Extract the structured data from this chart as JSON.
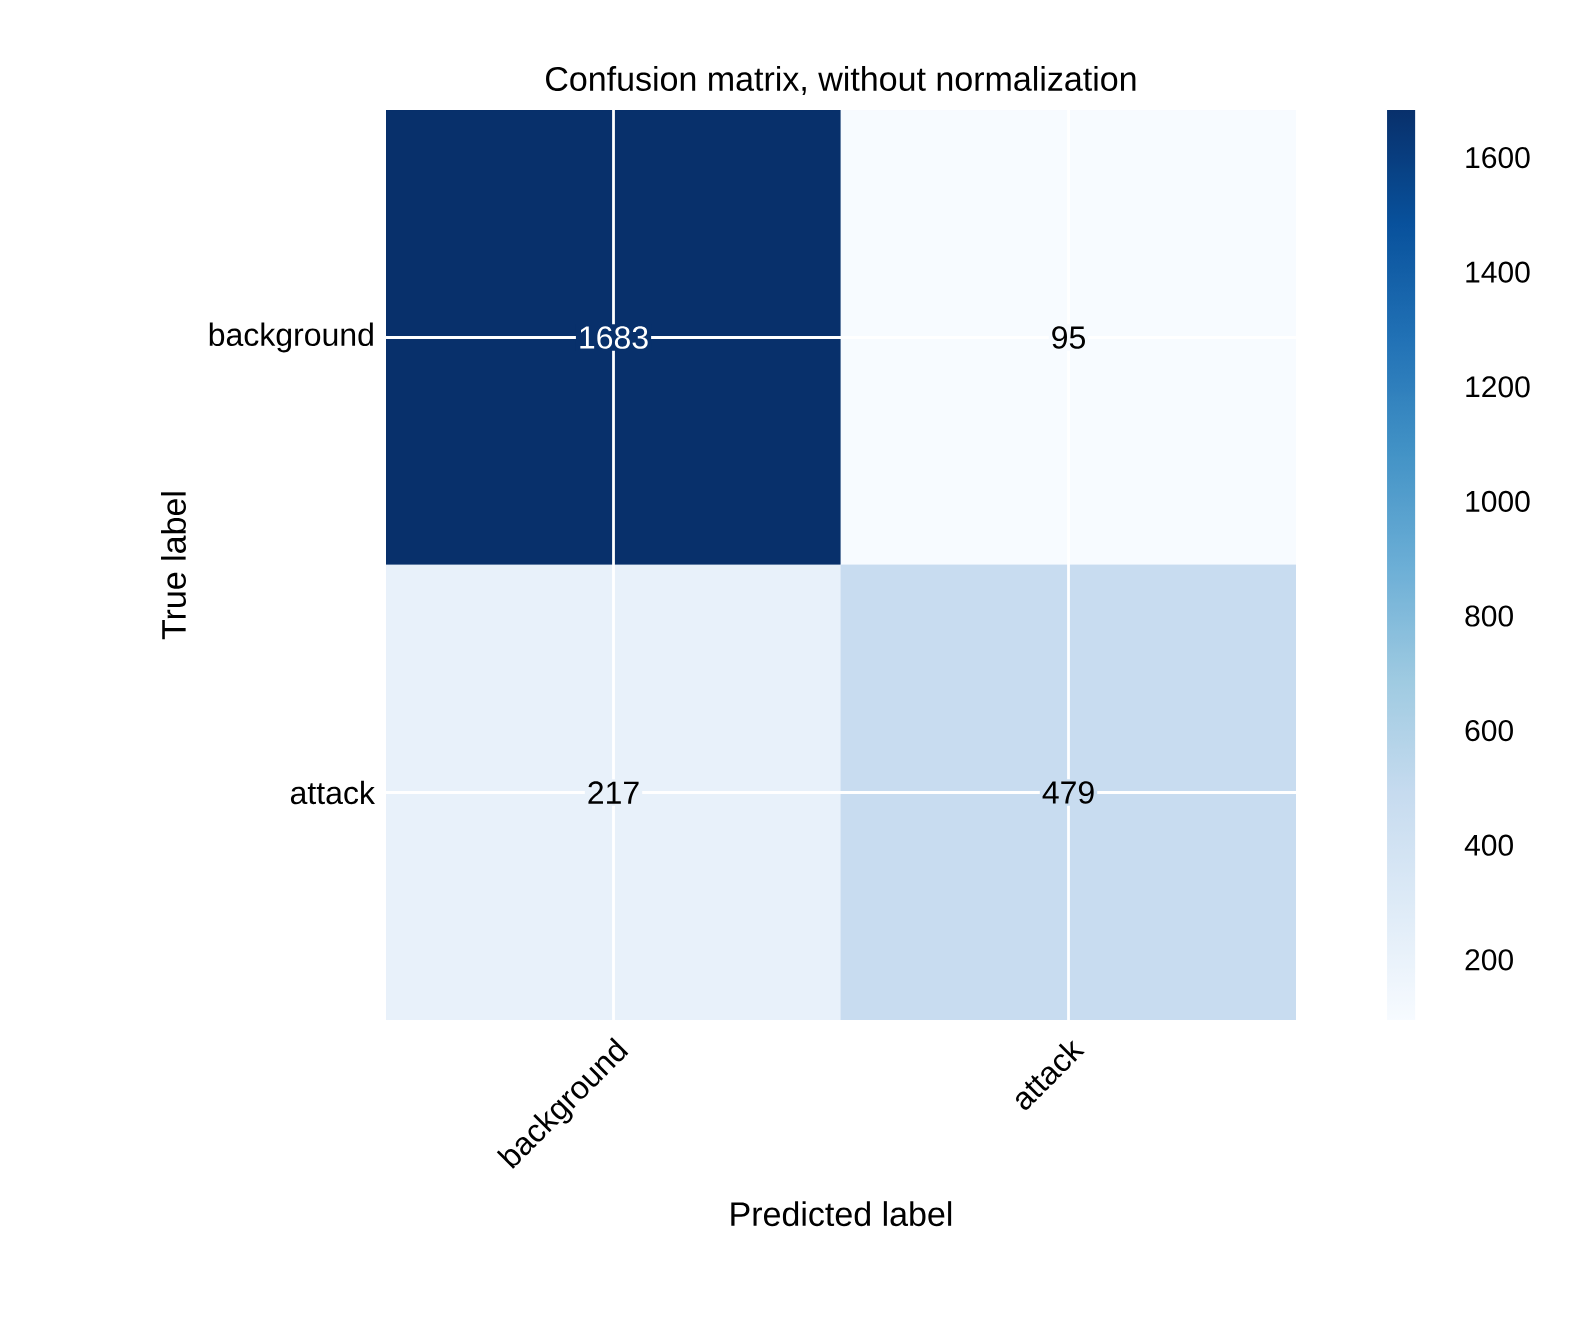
{
  "chart_data": {
    "type": "heatmap",
    "title": "Confusion matrix, without normalization",
    "xlabel": "Predicted label",
    "ylabel": "True label",
    "categories": [
      "background",
      "attack"
    ],
    "y_categories": [
      "background",
      "attack"
    ],
    "cells": [
      [
        1683,
        95
      ],
      [
        217,
        479
      ]
    ],
    "clim": [
      95,
      1683
    ],
    "cticks": [
      200,
      400,
      600,
      800,
      1000,
      1200,
      1400,
      1600
    ],
    "data_labels": true,
    "grid": true
  }
}
